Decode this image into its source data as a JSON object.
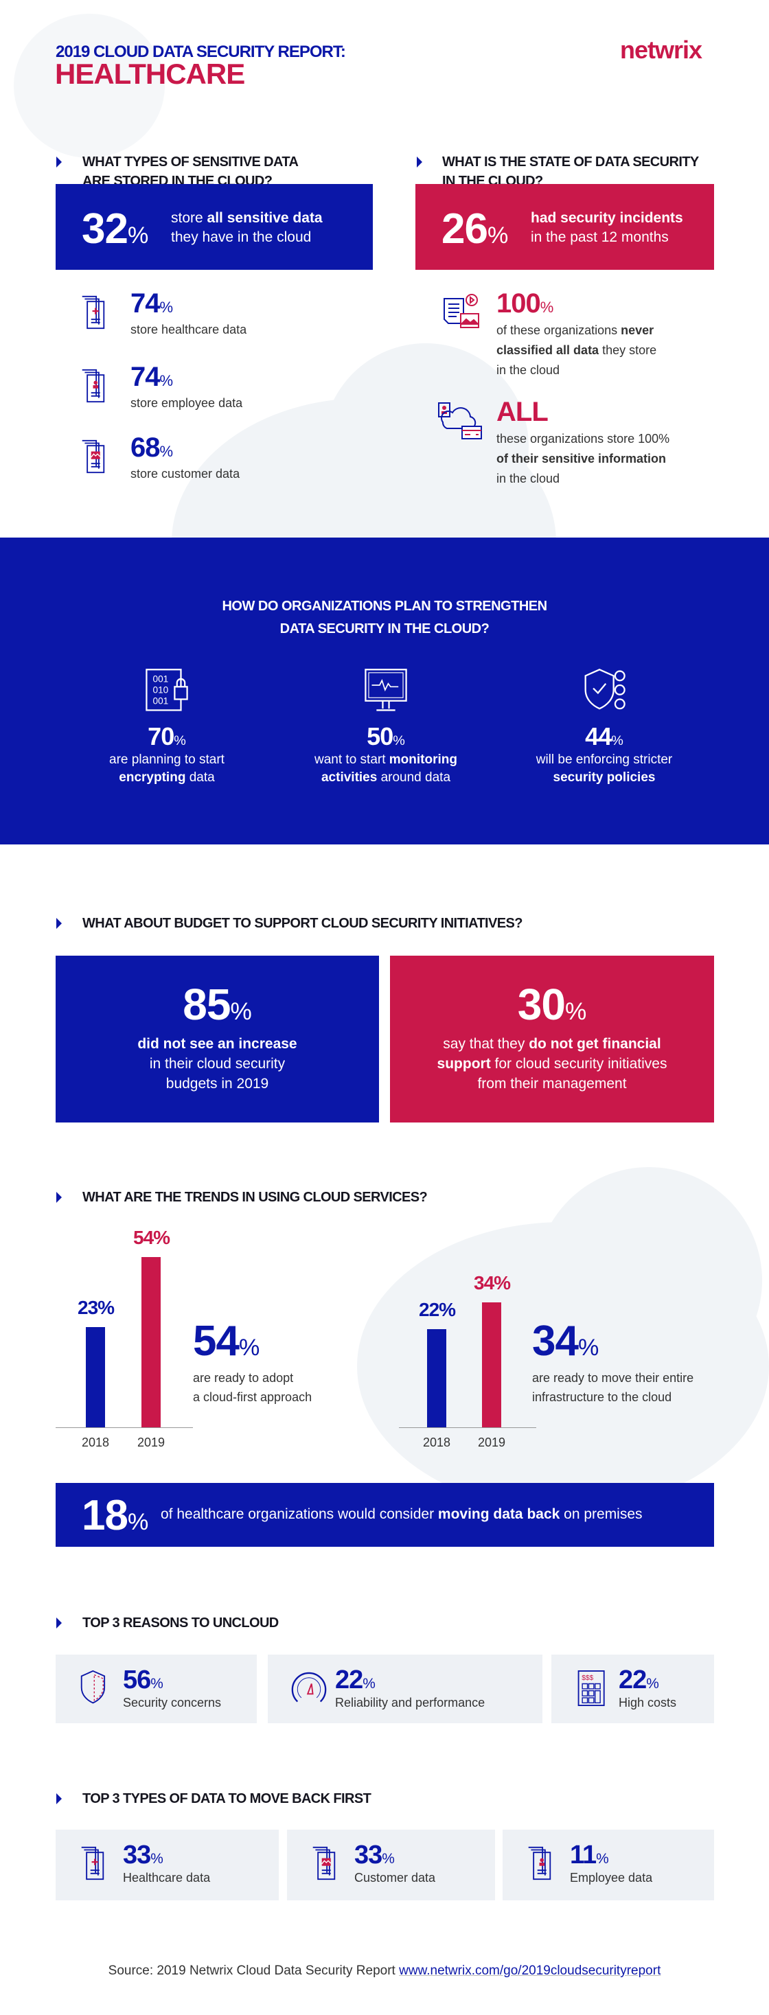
{
  "header": {
    "title_line1": "2019 CLOUD DATA SECURITY REPORT:",
    "title_line2": "HEALTHCARE",
    "logo": "netwrix"
  },
  "colors": {
    "blue": "#0b17a8",
    "red": "#c9184a",
    "card_bg": "#eef1f5"
  },
  "sensitive": {
    "heading_l1": "WHAT TYPES OF SENSITIVE DATA",
    "heading_l2": "ARE STORED IN THE CLOUD?",
    "highlight": {
      "value": "32",
      "unit": "%",
      "pre": "store ",
      "bold": "all sensitive data",
      "post": "they have in the cloud"
    },
    "items": [
      {
        "icon": "healthcare-document-icon",
        "value": "74",
        "unit": "%",
        "label": "store healthcare data"
      },
      {
        "icon": "employee-document-icon",
        "value": "74",
        "unit": "%",
        "label": "store employee data"
      },
      {
        "icon": "customer-document-icon",
        "value": "68",
        "unit": "%",
        "label": "store customer data"
      }
    ]
  },
  "state": {
    "heading_l1": "WHAT IS THE STATE OF DATA SECURITY",
    "heading_l2": "IN THE CLOUD?",
    "highlight": {
      "value": "26",
      "unit": "%",
      "bold": "had security incidents",
      "post": "in the past 12 months"
    },
    "items": [
      {
        "icon": "classified-documents-icon",
        "value": "100",
        "unit": "%",
        "l1_pre": "of these organizations ",
        "l1_bold": "never",
        "l2_bold": "classified all data",
        "l2_post": " they store",
        "l3": "in the cloud"
      },
      {
        "icon": "cloud-data-icon",
        "value": "ALL",
        "l1_pre": "these organizations store ",
        "l1_post": "100%",
        "l2_bold": "of their sensitive information",
        "l3": "in the cloud"
      }
    ]
  },
  "strengthen": {
    "heading_l1": "HOW DO ORGANIZATIONS PLAN TO STRENGTHEN",
    "heading_l2": "DATA SECURITY IN THE CLOUD?",
    "items": [
      {
        "icon": "encryption-lock-icon",
        "value": "70",
        "unit": "%",
        "l1": "are planning to start",
        "l2_bold": "encrypting",
        "l2_post": " data"
      },
      {
        "icon": "monitor-activity-icon",
        "value": "50",
        "unit": "%",
        "l1_pre": "want to start ",
        "l1_bold": "monitoring",
        "l2_bold": "activities",
        "l2_post": " around data"
      },
      {
        "icon": "shield-policy-icon",
        "value": "44",
        "unit": "%",
        "l1": "will be enforcing stricter",
        "l2_bold": "security policies"
      }
    ]
  },
  "budget": {
    "heading": "WHAT ABOUT BUDGET TO SUPPORT CLOUD SECURITY INITIATIVES?",
    "left": {
      "value": "85",
      "unit": "%",
      "l1_bold": "did not see an increase",
      "l2": "in their cloud security",
      "l3": "budgets in 2019"
    },
    "right": {
      "value": "30",
      "unit": "%",
      "l1_pre": "say that they ",
      "l1_bold": "do not get financial",
      "l2_bold": "support",
      "l2_post": " for cloud security initiatives",
      "l3": "from their management"
    }
  },
  "trends": {
    "heading": "WHAT ARE THE TRENDS IN USING CLOUD SERVICES?",
    "left": {
      "big_value": "54",
      "unit": "%",
      "l1": "are ready to adopt",
      "l2": "a cloud-first approach"
    },
    "right": {
      "big_value": "34",
      "unit": "%",
      "l1": "are ready to move their entire",
      "l2": "infrastructure to the cloud"
    },
    "banner": {
      "value": "18",
      "unit": "%",
      "pre": "of healthcare organizations would consider ",
      "bold": "moving data back",
      "post": " on premises"
    }
  },
  "chart_data": [
    {
      "type": "bar",
      "categories": [
        "2018",
        "2019"
      ],
      "values": [
        23,
        54
      ],
      "labels": [
        "23%",
        "54%"
      ]
    },
    {
      "type": "bar",
      "categories": [
        "2018",
        "2019"
      ],
      "values": [
        22,
        34
      ],
      "labels": [
        "22%",
        "34%"
      ]
    }
  ],
  "uncloud": {
    "heading": "TOP 3 REASONS TO UNCLOUD",
    "items": [
      {
        "icon": "shield-icon",
        "value": "56",
        "unit": "%",
        "label": "Security concerns"
      },
      {
        "icon": "speedometer-icon",
        "value": "22",
        "unit": "%",
        "label": "Reliability and performance"
      },
      {
        "icon": "calculator-icon",
        "value": "22",
        "unit": "%",
        "label": "High costs"
      }
    ]
  },
  "moveback": {
    "heading": "TOP 3 TYPES OF DATA TO MOVE BACK FIRST",
    "items": [
      {
        "icon": "healthcare-document-icon",
        "value": "33",
        "unit": "%",
        "label": "Healthcare data"
      },
      {
        "icon": "customer-document-icon",
        "value": "33",
        "unit": "%",
        "label": "Customer data"
      },
      {
        "icon": "employee-document-icon",
        "value": "11",
        "unit": "%",
        "label": "Employee data"
      }
    ]
  },
  "footer": {
    "source": "Source: 2019 Netwrix Cloud Data Security Report ",
    "link": "www.netwrix.com/go/2019cloudsecurityreport"
  }
}
